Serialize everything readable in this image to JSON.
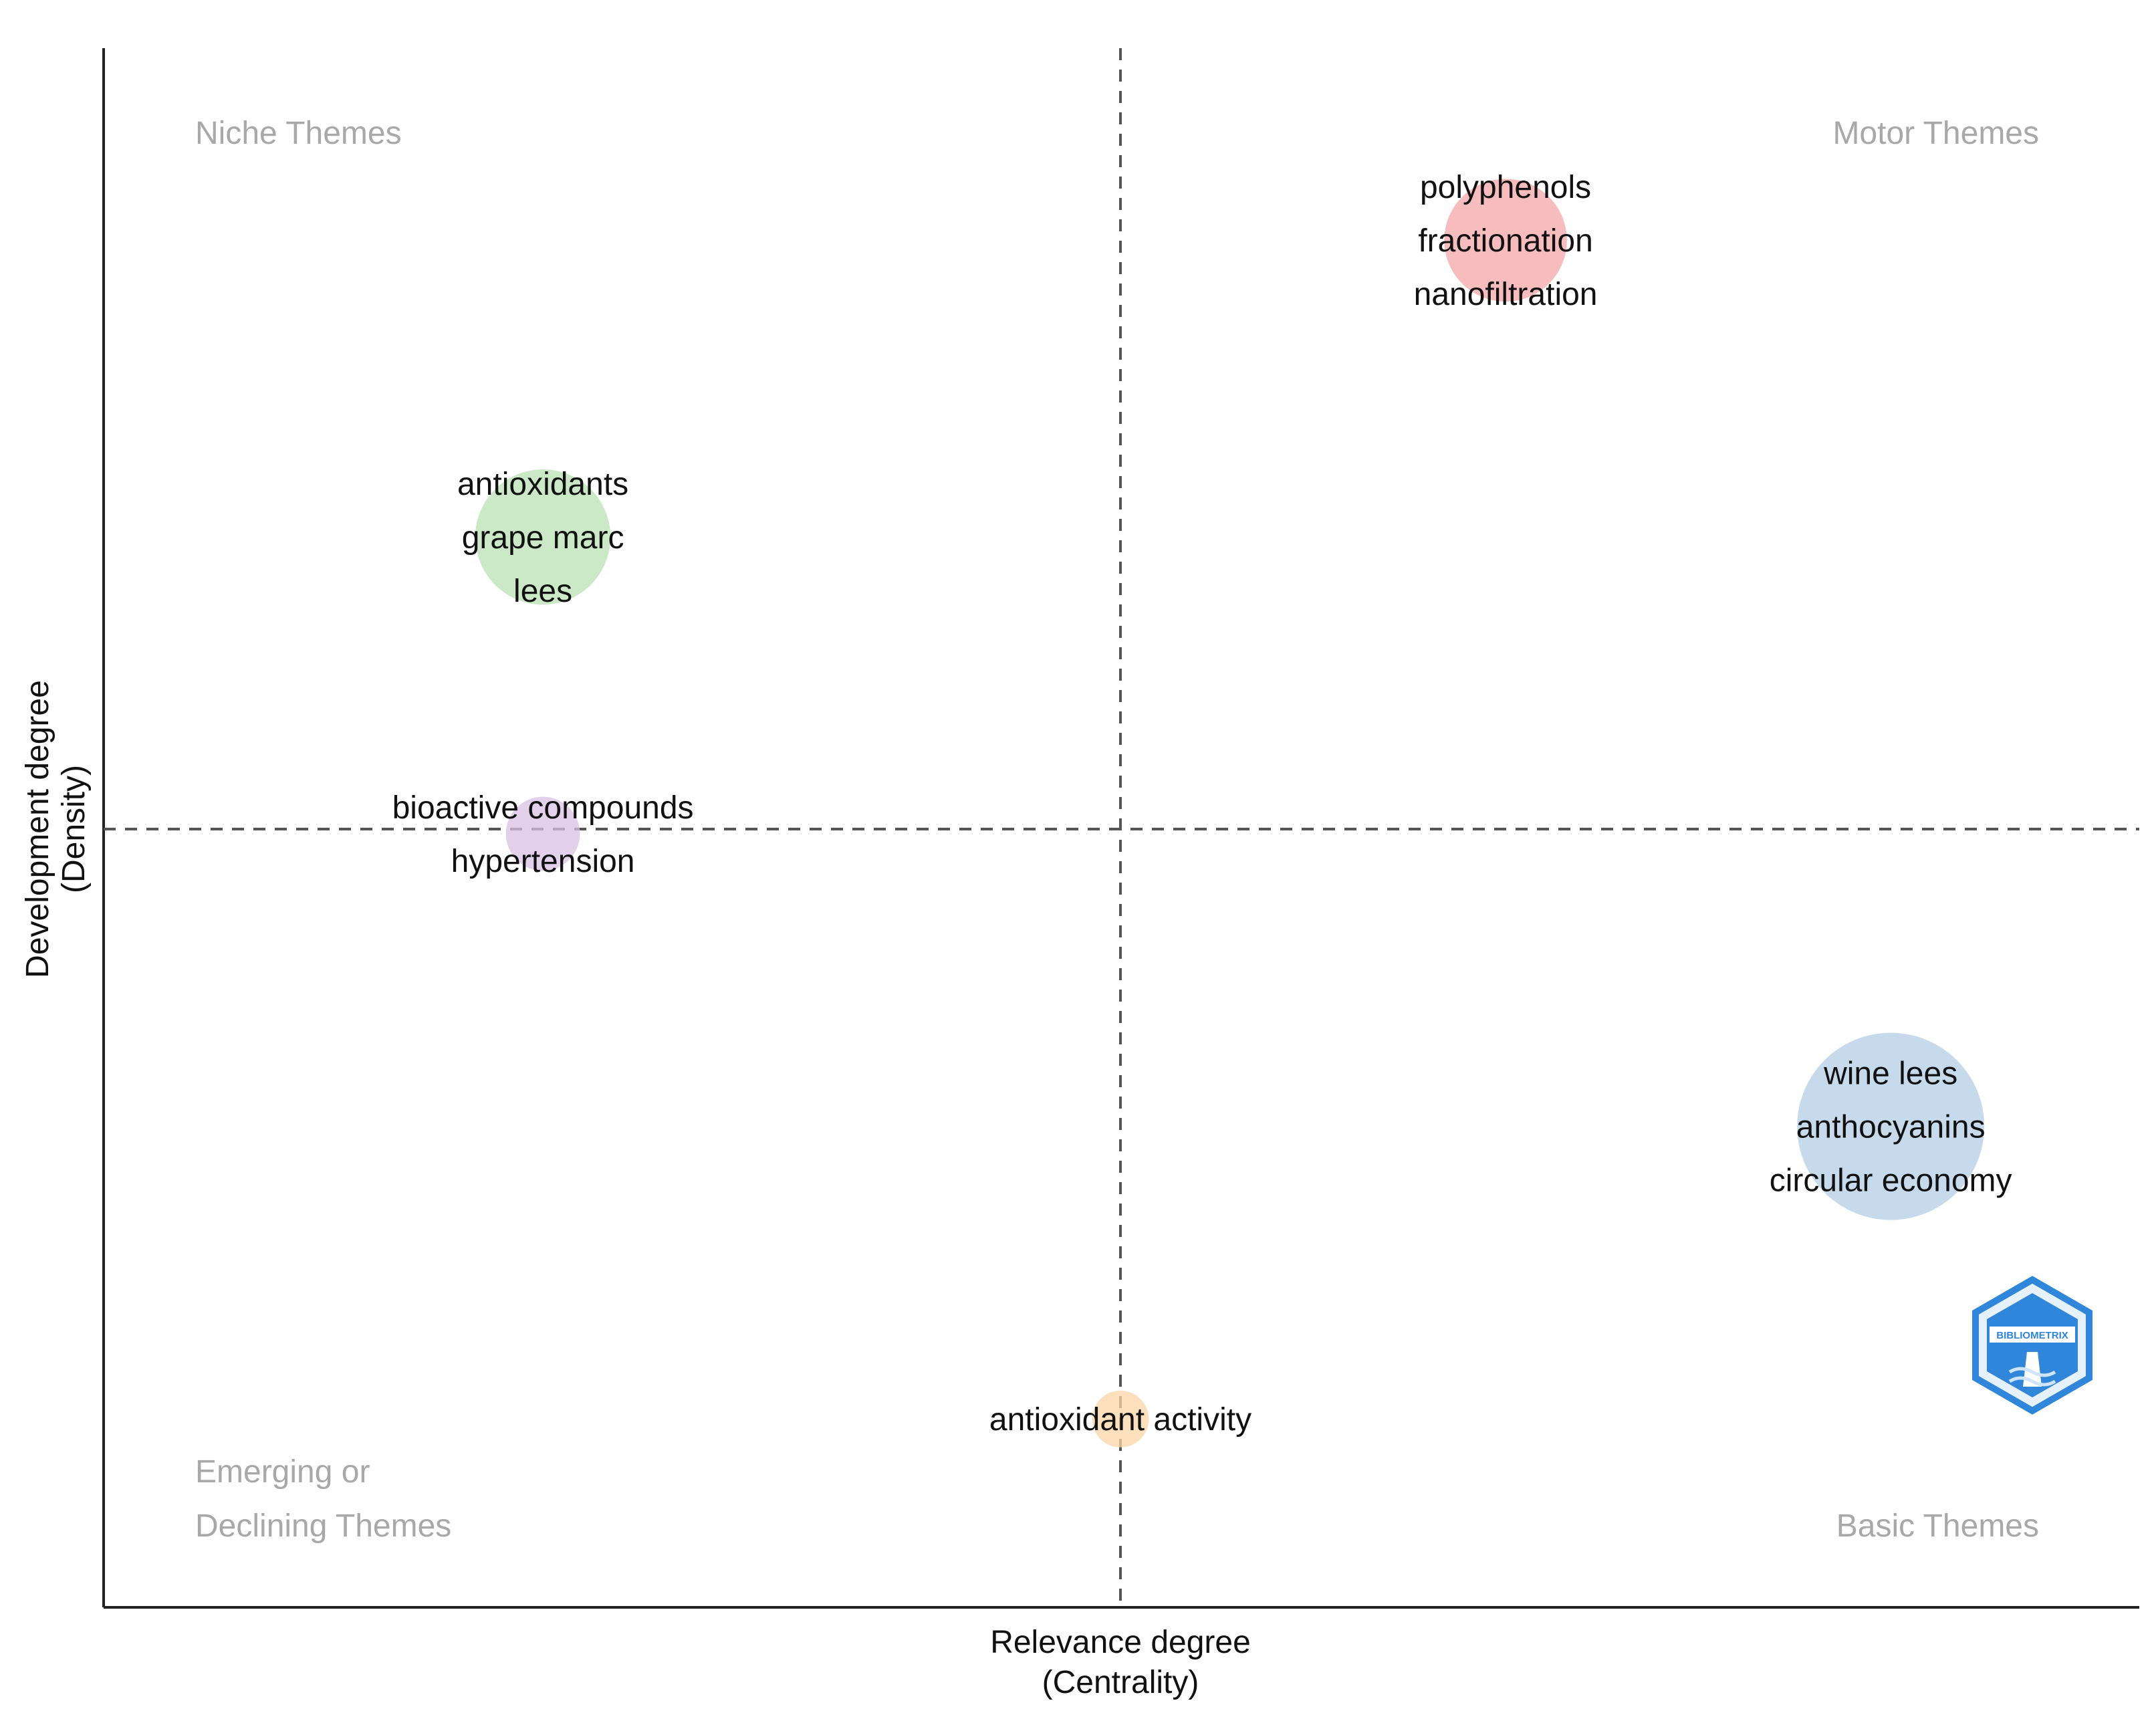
{
  "chart_data": {
    "type": "scatter",
    "subtype": "thematic-map",
    "xlabel": [
      "Relevance degree",
      "(Centrality)"
    ],
    "ylabel": [
      "Development degree",
      "(Density)"
    ],
    "xlim": [
      0,
      1
    ],
    "ylim": [
      0,
      1
    ],
    "x_divider": 0.5,
    "y_divider": 0.5,
    "grid": false,
    "quadrants": {
      "top_left": [
        "Niche Themes"
      ],
      "top_right": [
        "Motor Themes"
      ],
      "bottom_left": [
        "Emerging or",
        "Declining Themes"
      ],
      "bottom_right": [
        "Basic Themes"
      ]
    },
    "clusters": [
      {
        "name": "polyphenols",
        "x": 0.689,
        "y": 0.877,
        "size": 0.35,
        "color": "#f4a5a8",
        "labels": [
          "polyphenols",
          "fractionation",
          "nanofiltration"
        ]
      },
      {
        "name": "antioxidants",
        "x": 0.216,
        "y": 0.687,
        "size": 0.45,
        "color": "#b9e0b4",
        "labels": [
          "antioxidants",
          "grape marc",
          "lees"
        ]
      },
      {
        "name": "bioactive compounds",
        "x": 0.216,
        "y": 0.497,
        "size": 0.08,
        "color": "#d9c2e6",
        "labels": [
          "bioactive compounds",
          "hypertension"
        ]
      },
      {
        "name": "wine lees",
        "x": 0.878,
        "y": 0.309,
        "size": 1.0,
        "color": "#b4cde6",
        "labels": [
          "wine lees",
          "anthocyanins",
          "circular economy"
        ]
      },
      {
        "name": "antioxidant activity",
        "x": 0.5,
        "y": 0.121,
        "size": 0.03,
        "color": "#fbd6a8",
        "labels": [
          "antioxidant activity"
        ]
      }
    ]
  },
  "logo": {
    "text": "BIBLIOMETRIX",
    "color": "#2b7fd6"
  }
}
